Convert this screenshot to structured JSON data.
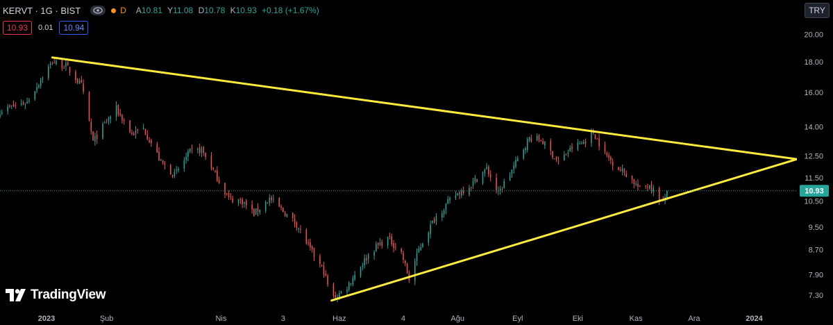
{
  "header": {
    "symbol": "KERVT · 1G · BIST",
    "eye_icon": "eye-icon",
    "status_flag": "D",
    "ohlc": {
      "open_label": "A",
      "open": "10.81",
      "high_label": "Y",
      "high": "11.08",
      "low_label": "D",
      "low": "10.78",
      "close_label": "K",
      "close": "10.93",
      "change": "+0.18 (+1.67%)"
    },
    "colors": {
      "up": "#26a69a",
      "down": "#f23645",
      "flag": "#f7931a"
    }
  },
  "quote": {
    "bid": "10.93",
    "spread": "0.01",
    "ask": "10.94"
  },
  "currency": "TRY",
  "brand": {
    "label": "TradingView",
    "logo_icon": "tradingview-logo-icon"
  },
  "chart_data": {
    "type": "candlestick",
    "y_scale": "log",
    "ylim": [
      6.9,
      21.2
    ],
    "y_ticks": [
      20.0,
      18.0,
      16.0,
      14.0,
      12.5,
      11.5,
      10.5,
      9.5,
      8.7,
      7.9,
      7.3
    ],
    "y_tick_labels": [
      "20.00",
      "18.00",
      "16.00",
      "14.00",
      "12.50",
      "11.50",
      "10.50",
      "9.50",
      "8.70",
      "7.90",
      "7.30"
    ],
    "x_range": [
      "2022-12-08",
      "2024-01-23"
    ],
    "x_ticks": [
      {
        "label": "2023",
        "date": "2023-01-01",
        "bold": true
      },
      {
        "label": "Şub",
        "date": "2023-02-01"
      },
      {
        "label": "Nis",
        "date": "2023-04-01"
      },
      {
        "label": "3",
        "date": "2023-05-03"
      },
      {
        "label": "Haz",
        "date": "2023-06-01"
      },
      {
        "label": "4",
        "date": "2023-07-04"
      },
      {
        "label": "Ağu",
        "date": "2023-08-01"
      },
      {
        "label": "Eyl",
        "date": "2023-09-01"
      },
      {
        "label": "Eki",
        "date": "2023-10-02"
      },
      {
        "label": "Kas",
        "date": "2023-11-01"
      },
      {
        "label": "Ara",
        "date": "2023-12-01"
      },
      {
        "label": "2024",
        "date": "2024-01-01",
        "bold": true
      }
    ],
    "last_price": 10.93,
    "last_price_label": "10.93",
    "first_date": "2022-12-08",
    "last_date": "2023-11-17",
    "anchors": [
      [
        "2022-12-08",
        14.9
      ],
      [
        "2022-12-22",
        15.4
      ],
      [
        "2023-01-04",
        18.0
      ],
      [
        "2023-01-11",
        17.7
      ],
      [
        "2023-01-19",
        16.4
      ],
      [
        "2023-01-25",
        13.2
      ],
      [
        "2023-02-01",
        14.3
      ],
      [
        "2023-02-06",
        15.0
      ],
      [
        "2023-02-14",
        13.6
      ],
      [
        "2023-02-20",
        13.9
      ],
      [
        "2023-03-01",
        12.2
      ],
      [
        "2023-03-08",
        11.6
      ],
      [
        "2023-03-16",
        12.7
      ],
      [
        "2023-03-22",
        12.8
      ],
      [
        "2023-03-30",
        11.5
      ],
      [
        "2023-04-05",
        10.6
      ],
      [
        "2023-04-12",
        10.5
      ],
      [
        "2023-04-18",
        10.0
      ],
      [
        "2023-04-26",
        10.6
      ],
      [
        "2023-05-03",
        10.1
      ],
      [
        "2023-05-10",
        9.6
      ],
      [
        "2023-05-17",
        8.7
      ],
      [
        "2023-05-24",
        8.0
      ],
      [
        "2023-05-28",
        7.2
      ],
      [
        "2023-06-04",
        7.45
      ],
      [
        "2023-06-10",
        8.0
      ],
      [
        "2023-06-18",
        8.7
      ],
      [
        "2023-06-26",
        9.1
      ],
      [
        "2023-07-03",
        8.6
      ],
      [
        "2023-07-07",
        7.75
      ],
      [
        "2023-07-12",
        8.7
      ],
      [
        "2023-07-20",
        9.8
      ],
      [
        "2023-07-30",
        10.7
      ],
      [
        "2023-08-08",
        11.2
      ],
      [
        "2023-08-16",
        11.9
      ],
      [
        "2023-08-22",
        10.8
      ],
      [
        "2023-08-30",
        12.0
      ],
      [
        "2023-09-07",
        13.4
      ],
      [
        "2023-09-13",
        13.3
      ],
      [
        "2023-09-18",
        12.7
      ],
      [
        "2023-09-22",
        12.2
      ],
      [
        "2023-09-29",
        12.9
      ],
      [
        "2023-10-05",
        13.2
      ],
      [
        "2023-10-10",
        13.7
      ],
      [
        "2023-10-16",
        12.6
      ],
      [
        "2023-10-22",
        12.0
      ],
      [
        "2023-10-28",
        11.6
      ],
      [
        "2023-11-03",
        11.0
      ],
      [
        "2023-11-08",
        11.2
      ],
      [
        "2023-11-12",
        10.7
      ],
      [
        "2023-11-15",
        10.4
      ],
      [
        "2023-11-17",
        10.93
      ]
    ],
    "trendlines": [
      {
        "name": "upper",
        "color": "#ffeb3b",
        "from": [
          "2023-01-04",
          18.3
        ],
        "to": [
          "2024-01-23",
          12.35
        ]
      },
      {
        "name": "lower",
        "color": "#ffeb3b",
        "from": [
          "2023-05-28",
          7.15
        ],
        "to": [
          "2024-01-23",
          12.35
        ]
      }
    ],
    "grid": false
  }
}
